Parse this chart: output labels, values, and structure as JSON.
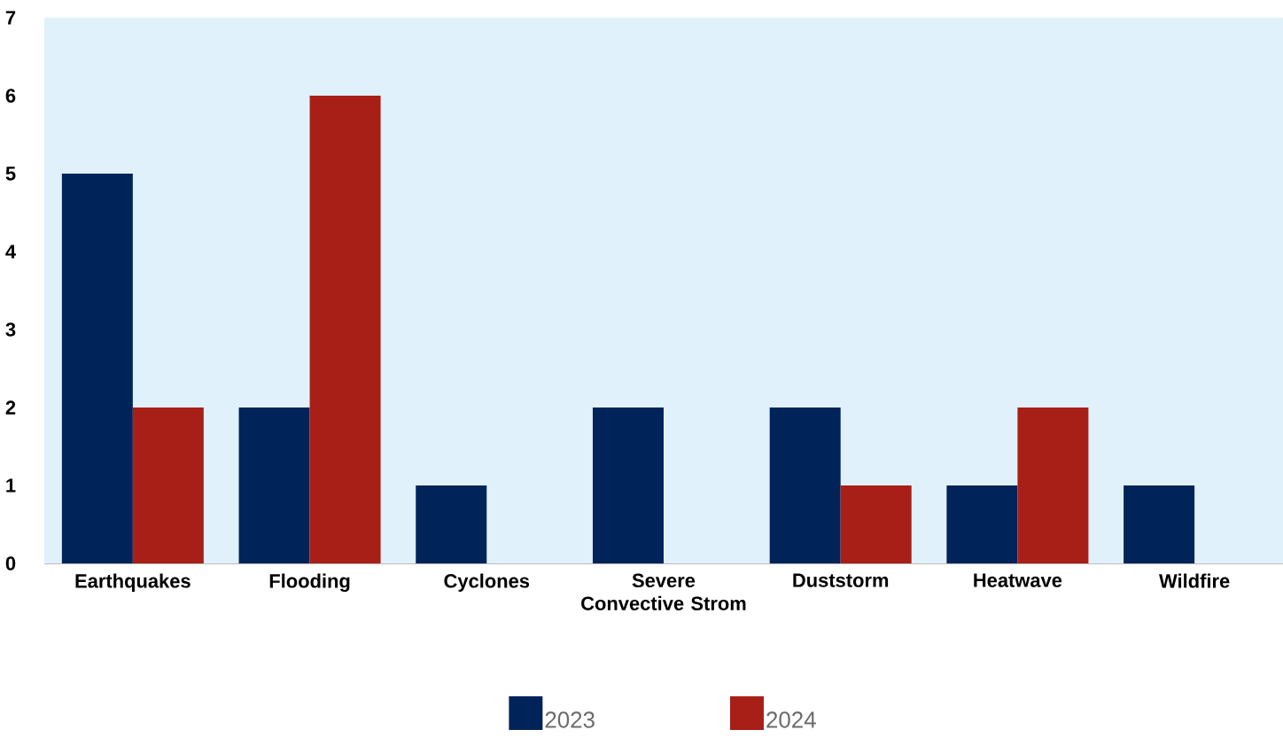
{
  "chart_data": {
    "type": "bar",
    "categories": [
      "Earthquakes",
      "Flooding",
      "Cyclones",
      "Severe Convective Strom",
      "Duststorm",
      "Heatwave",
      "Wildfire"
    ],
    "series": [
      {
        "name": "2023",
        "color": "#00235a",
        "values": [
          5,
          2,
          1,
          2,
          2,
          1,
          1
        ]
      },
      {
        "name": "2024",
        "color": "#a81f18",
        "values": [
          2,
          6,
          0,
          0,
          1,
          2,
          0
        ]
      }
    ],
    "ylim": [
      0,
      7
    ],
    "yticks": [
      0,
      1,
      2,
      3,
      4,
      5,
      6,
      7
    ],
    "grid": false,
    "legend": "bottom"
  }
}
